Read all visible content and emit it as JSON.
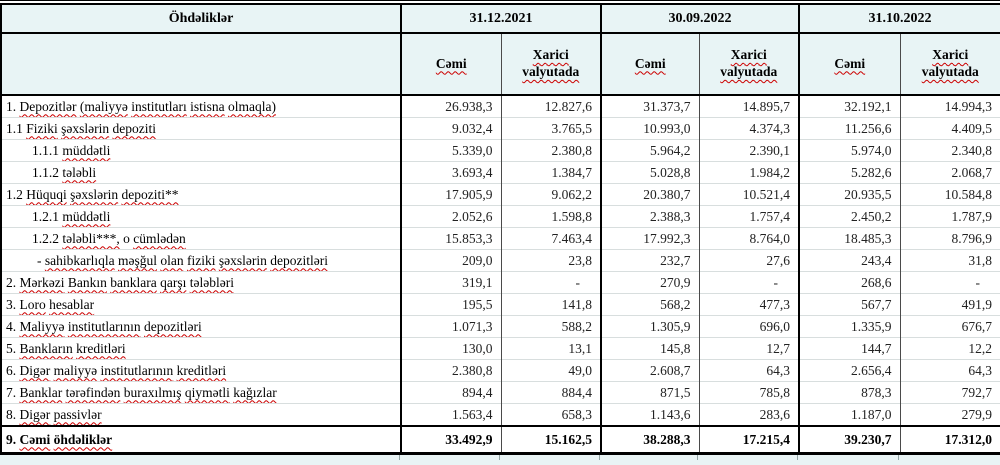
{
  "colors": {
    "header_bg": "#e8f4f5",
    "page_bg": "#e9f4f5",
    "squiggle": "#cc0000",
    "border": "#000000"
  },
  "table": {
    "title": "Öhdəliklər",
    "periods": [
      "31.12.2021",
      "30.09.2022",
      "31.10.2022"
    ],
    "subheaders": {
      "total": "Cəmi",
      "foreign": "Xarici valyutada"
    },
    "rows": [
      {
        "label": "1. Depozitlər (maliyyə institutları istisna olmaqla)",
        "values": [
          "26.938,3",
          "12.827,6",
          "31.373,7",
          "14.895,7",
          "32.192,1",
          "14.994,3"
        ]
      },
      {
        "label": "1.1 Fiziki şəxslərin depoziti",
        "values": [
          "9.032,4",
          "3.765,5",
          "10.993,0",
          "4.374,3",
          "11.256,6",
          "4.409,5"
        ]
      },
      {
        "label": "1.1.1 müddətli",
        "values": [
          "5.339,0",
          "2.380,8",
          "5.964,2",
          "2.390,1",
          "5.974,0",
          "2.340,8"
        ]
      },
      {
        "label": "1.1.2 tələbli",
        "values": [
          "3.693,4",
          "1.384,7",
          "5.028,8",
          "1.984,2",
          "5.282,6",
          "2.068,7"
        ]
      },
      {
        "label": "1.2 Hüquqi şəxslərin depoziti**",
        "values": [
          "17.905,9",
          "9.062,2",
          "20.380,7",
          "10.521,4",
          "20.935,5",
          "10.584,8"
        ]
      },
      {
        "label": "1.2.1 müddətli",
        "values": [
          "2.052,6",
          "1.598,8",
          "2.388,3",
          "1.757,4",
          "2.450,2",
          "1.787,9"
        ]
      },
      {
        "label": "1.2.2 tələbli***, o cümlədən",
        "values": [
          "15.853,3",
          "7.463,4",
          "17.992,3",
          "8.764,0",
          "18.485,3",
          "8.796,9"
        ]
      },
      {
        "label": "- sahibkarlıqla məşğul olan fiziki şəxslərin depozitləri",
        "values": [
          "209,0",
          "23,8",
          "232,7",
          "27,6",
          "243,4",
          "31,8"
        ]
      },
      {
        "label": "2. Mərkəzi Bankın banklara qarşı tələbləri",
        "values": [
          "319,1",
          "-",
          "270,9",
          "-",
          "268,6",
          "-"
        ]
      },
      {
        "label": "3. Loro hesablar",
        "values": [
          "195,5",
          "141,8",
          "568,2",
          "477,3",
          "567,7",
          "491,9"
        ]
      },
      {
        "label": "4. Maliyyə institutlarının  depozitləri",
        "values": [
          "1.071,3",
          "588,2",
          "1.305,9",
          "696,0",
          "1.335,9",
          "676,7"
        ]
      },
      {
        "label": "5. Bankların kreditləri",
        "values": [
          "130,0",
          "13,1",
          "145,8",
          "12,7",
          "144,7",
          "12,2"
        ]
      },
      {
        "label": "6. Digər maliyyə institutlarının kreditləri",
        "values": [
          "2.380,8",
          "49,0",
          "2.608,7",
          "64,3",
          "2.656,4",
          "64,3"
        ]
      },
      {
        "label": "7. Banklar tərəfindən buraxılmış qiymətli kağızlar",
        "values": [
          "894,4",
          "884,4",
          "871,5",
          "785,8",
          "878,3",
          "792,7"
        ]
      },
      {
        "label": "8. Digər passivlər",
        "values": [
          "1.563,4",
          "658,3",
          "1.143,6",
          "283,6",
          "1.187,0",
          "279,9"
        ]
      }
    ],
    "total_row": {
      "label": "9. Cəmi öhdəliklər",
      "values": [
        "33.492,9",
        "15.162,5",
        "38.288,3",
        "17.215,4",
        "39.230,7",
        "17.312,0"
      ]
    }
  }
}
